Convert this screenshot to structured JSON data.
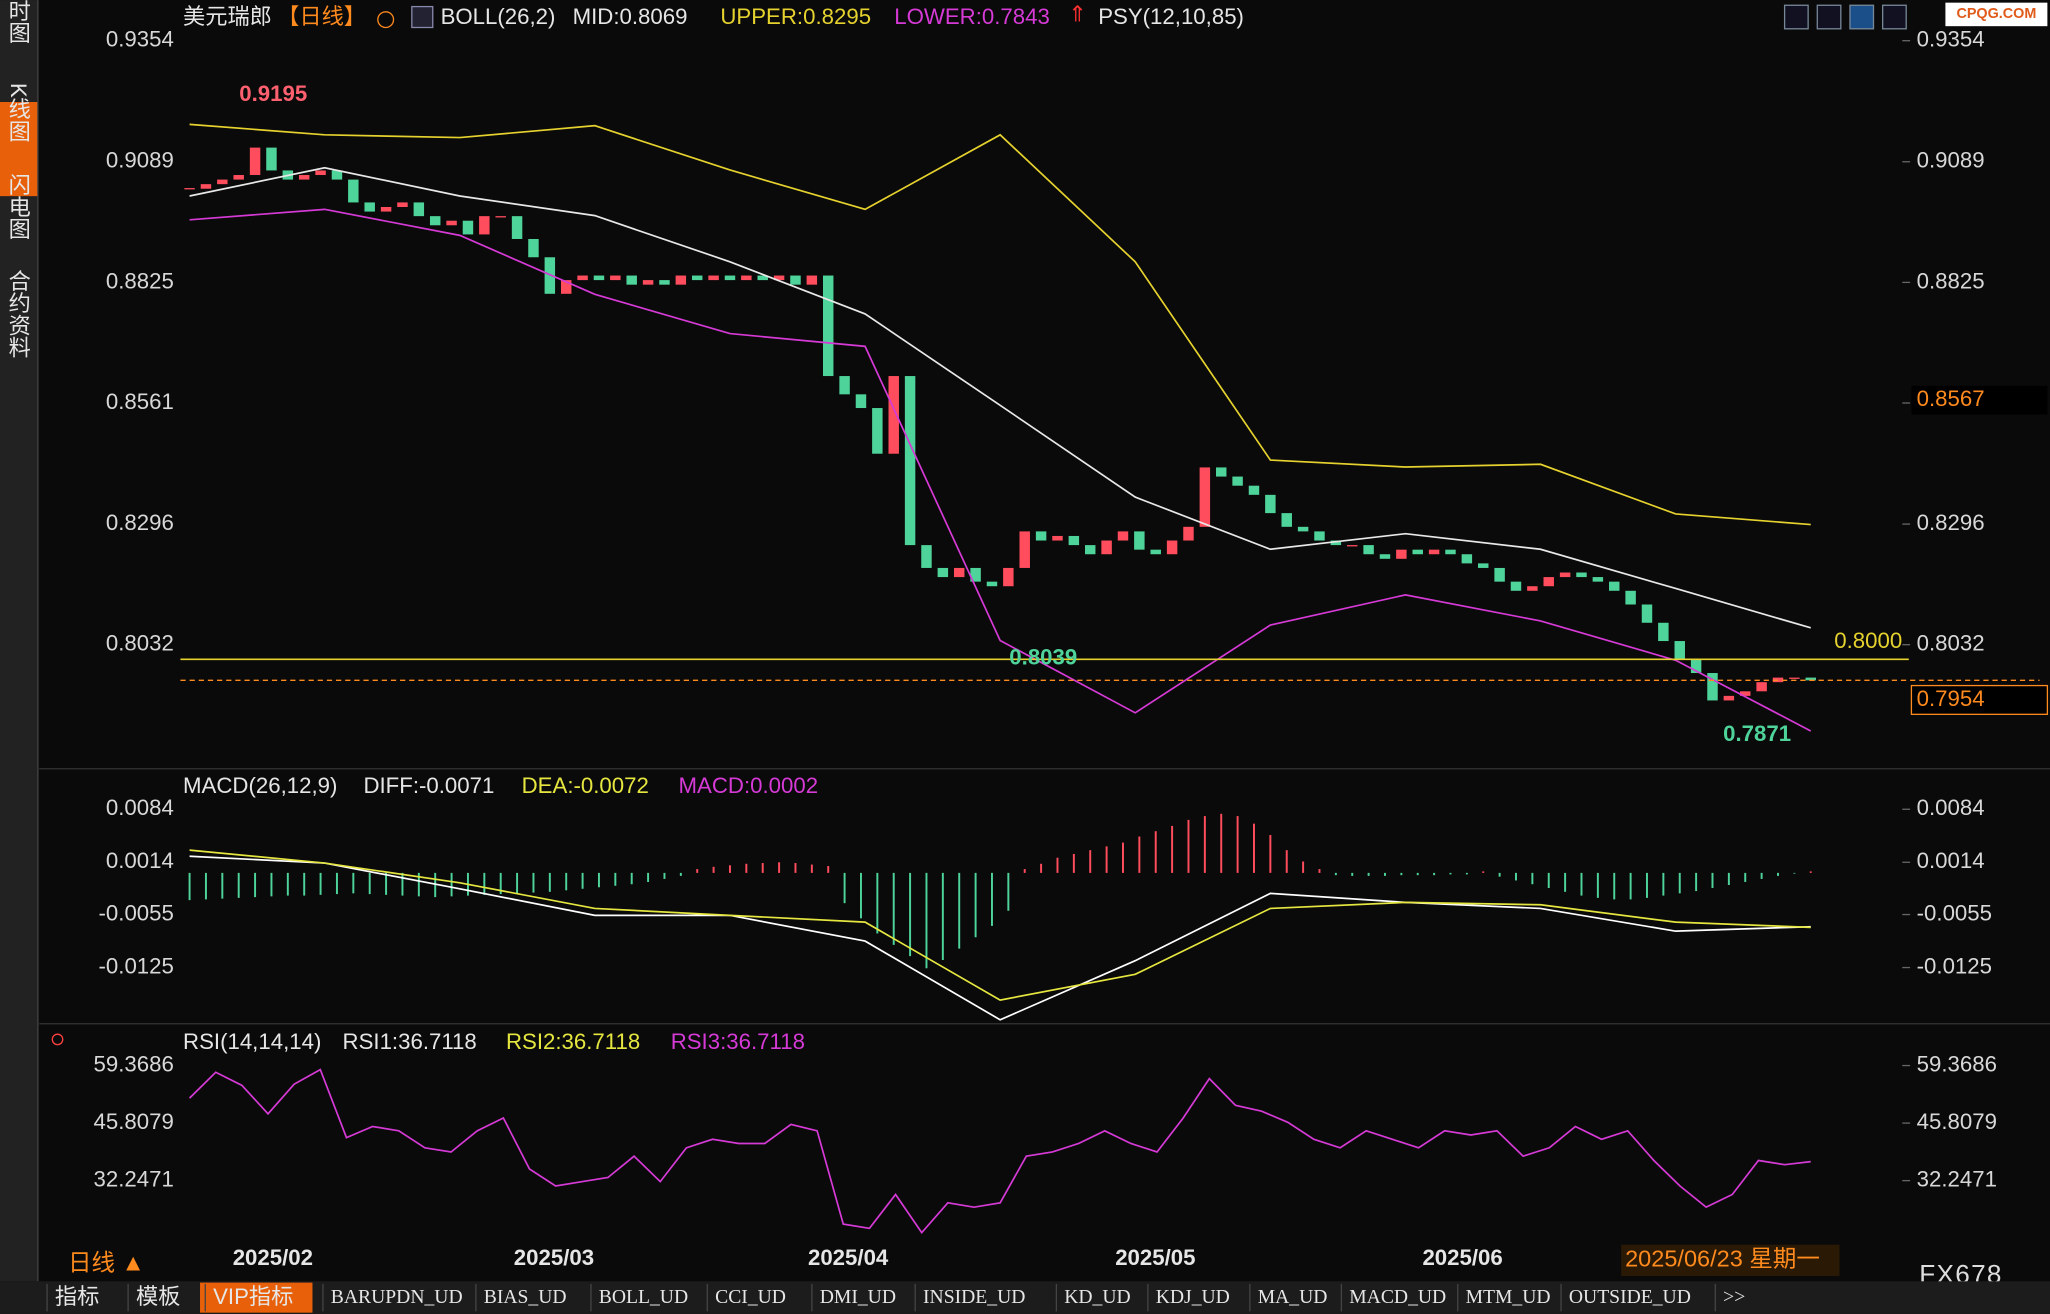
{
  "sidebar": [
    "分时图",
    "K线图",
    "闪电图",
    "合约资料"
  ],
  "header": {
    "symbol": "美元瑞郎",
    "period": "【日线】",
    "boll": "BOLL(26,2)",
    "mid": "MID:0.8069",
    "upper": "UPPER:0.8295",
    "lower": "LOWER:0.7843",
    "psy": "PSY(12,10,85)"
  },
  "watermark": "CPQG.COM",
  "main": {
    "ylim": [
      0.7769,
      0.9443
    ],
    "yticks": [
      0.9354,
      0.9089,
      0.8825,
      0.8561,
      0.8296,
      0.8032
    ],
    "colors": {
      "up": "#ff4d5e",
      "down": "#4ed39a",
      "upper": "#e6d22e",
      "mid": "#e8e8e8",
      "lower": "#d63ad6"
    },
    "candles": {
      "close": [
        0.903,
        0.904,
        0.905,
        0.906,
        0.912,
        0.907,
        0.905,
        0.906,
        0.907,
        0.905,
        0.9,
        0.898,
        0.899,
        0.9,
        0.897,
        0.895,
        0.896,
        0.893,
        0.897,
        0.897,
        0.892,
        0.888,
        0.88,
        0.883,
        0.884,
        0.883,
        0.884,
        0.882,
        0.883,
        0.882,
        0.884,
        0.883,
        0.884,
        0.883,
        0.884,
        0.883,
        0.884,
        0.882,
        0.884,
        0.862,
        0.858,
        0.855,
        0.845,
        0.862,
        0.825,
        0.82,
        0.818,
        0.82,
        0.817,
        0.816,
        0.82,
        0.828,
        0.826,
        0.827,
        0.825,
        0.823,
        0.826,
        0.828,
        0.824,
        0.823,
        0.826,
        0.829,
        0.842,
        0.84,
        0.838,
        0.836,
        0.832,
        0.829,
        0.828,
        0.826,
        0.825,
        0.825,
        0.823,
        0.822,
        0.824,
        0.823,
        0.824,
        0.823,
        0.821,
        0.82,
        0.817,
        0.815,
        0.816,
        0.818,
        0.819,
        0.818,
        0.817,
        0.815,
        0.812,
        0.808,
        0.804,
        0.8,
        0.797,
        0.791,
        0.792,
        0.793,
        0.795,
        0.796,
        0.796,
        0.7954
      ]
    },
    "boll": {
      "upper": [
        0.9171,
        0.9148,
        0.9142,
        0.9168,
        0.9071,
        0.8985,
        0.9148,
        0.887,
        0.8436,
        0.8421,
        0.8427,
        0.8318,
        0.8295
      ],
      "mid": [
        0.9014,
        0.9076,
        0.9014,
        0.8971,
        0.887,
        0.8756,
        0.8556,
        0.8355,
        0.8241,
        0.8275,
        0.8241,
        0.8155,
        0.8069
      ],
      "lower": [
        0.8962,
        0.8985,
        0.8928,
        0.8799,
        0.8713,
        0.8685,
        0.8041,
        0.7883,
        0.8075,
        0.8141,
        0.8084,
        0.7998,
        0.7843
      ]
    },
    "hline": {
      "value": 0.8,
      "label": "0.8000"
    },
    "last": {
      "value": 0.7954,
      "label": "0.7954"
    },
    "marker": 0.8567,
    "annotations": [
      0.9195,
      0.8039,
      0.7871
    ]
  },
  "macd": {
    "header": {
      "name": "MACD(26,12,9)",
      "diff": "DIFF:-0.0071",
      "dea": "DEA:-0.0072",
      "macd": "MACD:0.0002"
    },
    "ylim": [
      -0.0194,
      0.0134
    ],
    "yticks": [
      0.0084,
      0.0014,
      -0.0055,
      -0.0125
    ],
    "colors": {
      "diff": "#ffffff",
      "dea": "#e6e640",
      "up": "#ff4d5e",
      "down": "#4ed39a"
    },
    "diff": [
      0.0022,
      0.0013,
      -0.0021,
      -0.0056,
      -0.0056,
      -0.009,
      -0.0194,
      -0.0116,
      -0.0027,
      -0.0039,
      -0.0047,
      -0.0077,
      -0.0071
    ],
    "dea": [
      0.003,
      0.0013,
      -0.0013,
      -0.0047,
      -0.0056,
      -0.0065,
      -0.0168,
      -0.0134,
      -0.0047,
      -0.0039,
      -0.0042,
      -0.0065,
      -0.0072
    ],
    "hist": [
      -0.0036,
      -0.0035,
      -0.0034,
      -0.0033,
      -0.0032,
      -0.0031,
      -0.003,
      -0.003,
      -0.0029,
      -0.0028,
      -0.0027,
      -0.0028,
      -0.0029,
      -0.003,
      -0.0031,
      -0.0032,
      -0.0031,
      -0.003,
      -0.0029,
      -0.0028,
      -0.0027,
      -0.0026,
      -0.0025,
      -0.0023,
      -0.0021,
      -0.0019,
      -0.0017,
      -0.0015,
      -0.0012,
      -0.0008,
      -0.0004,
      0.0005,
      0.0008,
      0.001,
      0.0012,
      0.0013,
      0.0014,
      0.0013,
      0.0011,
      0.0009,
      -0.004,
      -0.006,
      -0.008,
      -0.0095,
      -0.011,
      -0.0126,
      -0.0115,
      -0.01,
      -0.0085,
      -0.007,
      -0.005,
      0.0005,
      0.0012,
      0.002,
      0.0025,
      0.003,
      0.0035,
      0.004,
      0.0048,
      0.0055,
      0.0062,
      0.007,
      0.0075,
      0.0078,
      0.0075,
      0.0065,
      0.005,
      0.003,
      0.0015,
      0.0005,
      -0.0003,
      -0.0004,
      -0.0004,
      -0.0004,
      -0.0003,
      -0.0003,
      -0.0003,
      -0.0002,
      -0.0002,
      0.0002,
      -0.0005,
      -0.001,
      -0.0015,
      -0.002,
      -0.0025,
      -0.003,
      -0.0033,
      -0.0035,
      -0.0035,
      -0.0033,
      -0.003,
      -0.0027,
      -0.0024,
      -0.002,
      -0.0016,
      -0.0012,
      -0.0008,
      -0.0004,
      -0.0001,
      0.0002
    ]
  },
  "rsi": {
    "header": {
      "name": "RSI(14,14,14)",
      "rsi1": "RSI1:36.7118",
      "rsi2": "RSI2:36.7118",
      "rsi3": "RSI3:36.7118"
    },
    "ylim": [
      16.23,
      68.61
    ],
    "yticks": [
      59.3686,
      45.8079,
      32.2471
    ],
    "color": "#d63ad6",
    "values": [
      51.7,
      57.8,
      54.7,
      48,
      55,
      58.4,
      42.4,
      45,
      44,
      40,
      39,
      44,
      47,
      35,
      31,
      32,
      33,
      38,
      32,
      40,
      42,
      41,
      41,
      45.5,
      44,
      22,
      21,
      29,
      20,
      27,
      26,
      27,
      38,
      39,
      41,
      44,
      41,
      39,
      47,
      56.3,
      50,
      48.6,
      46,
      42,
      40,
      44,
      42,
      40,
      44,
      43,
      44,
      38,
      40,
      45,
      42,
      44,
      37,
      31,
      26,
      29,
      37,
      36,
      36.7118
    ]
  },
  "dates": [
    "2025/02",
    "2025/03",
    "2025/04",
    "2025/05",
    "2025/06"
  ],
  "footer": {
    "period": "日线 ▲",
    "date": "2025/06/23 星期一",
    "brand": "FX678",
    "tabs": [
      "指标",
      "模板",
      "VIP指标",
      "BARUPDN_UD",
      "BIAS_UD",
      "BOLL_UD",
      "CCI_UD",
      "DMI_UD",
      "INSIDE_UD",
      "KD_UD",
      "KDJ_UD",
      "MA_UD",
      "MACD_UD",
      "MTM_UD",
      "OUTSIDE_UD",
      ">>"
    ]
  }
}
